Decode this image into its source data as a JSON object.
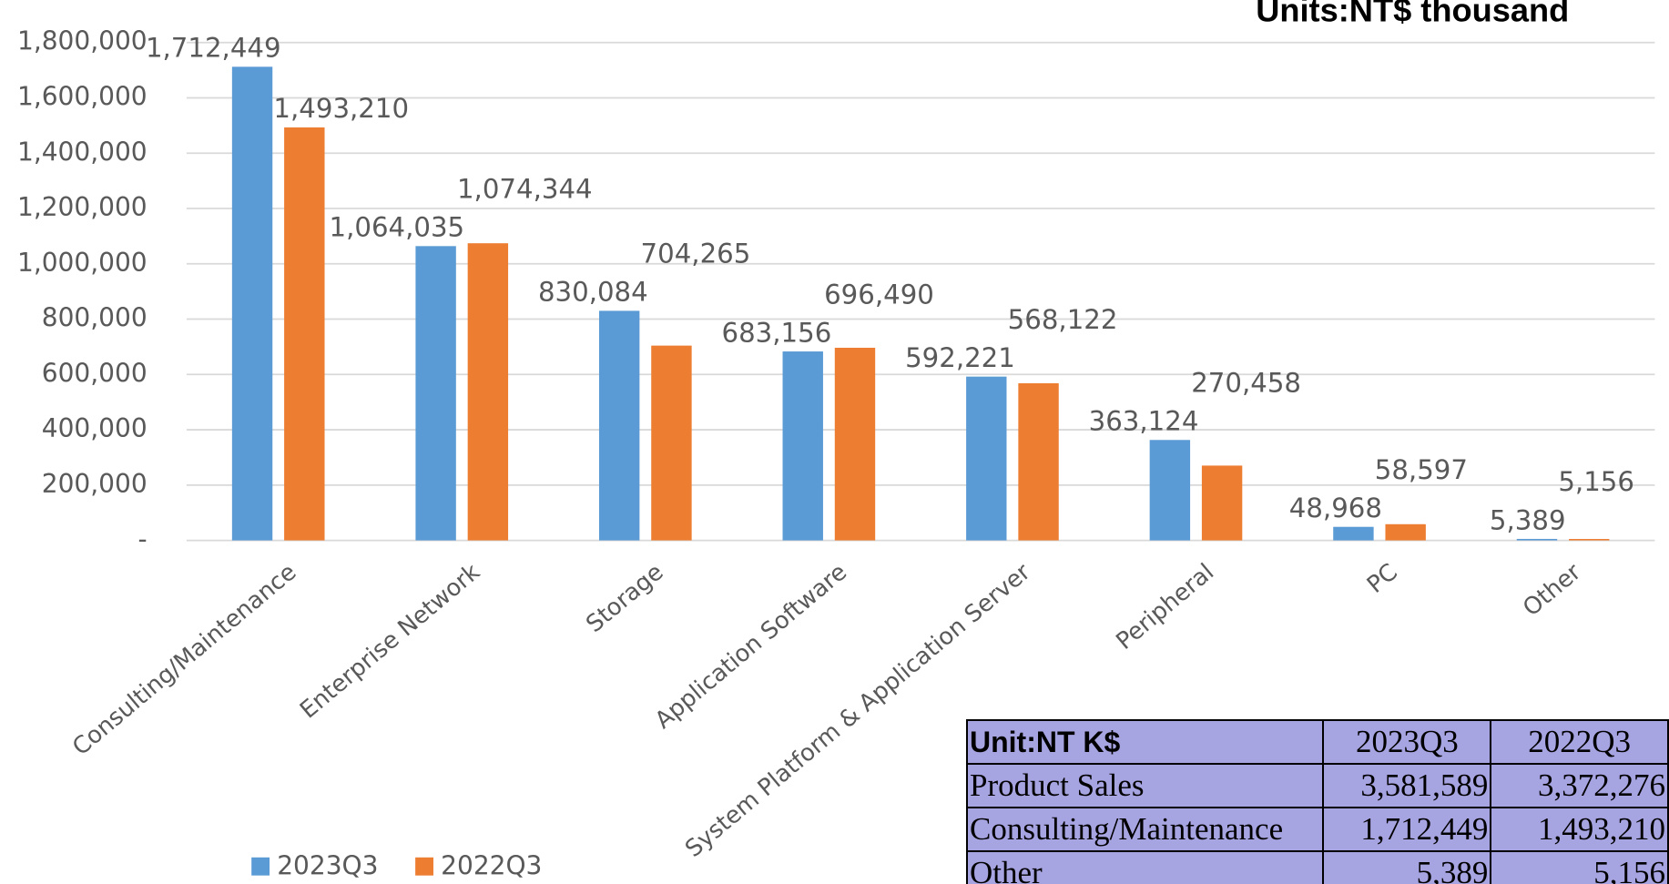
{
  "chart_data": {
    "type": "bar",
    "title": "Units:NT$ thousand",
    "categories": [
      "Consulting/Maintenance",
      "Enterprise Network",
      "Storage",
      "Application Software",
      "System Platform & Application Server",
      "Peripheral",
      "PC",
      "Other"
    ],
    "series": [
      {
        "name": "2023Q3",
        "color": "#5b9bd5",
        "values": [
          1712449,
          1064035,
          830084,
          683156,
          592221,
          363124,
          48968,
          5389
        ],
        "value_labels": [
          "1,712,449",
          "1,064,035",
          "830,084",
          "683,156",
          "592,221",
          "363,124",
          "48,968",
          "5,389"
        ]
      },
      {
        "name": "2022Q3",
        "color": "#ed7d31",
        "values": [
          1493210,
          1074344,
          704265,
          696490,
          568122,
          270458,
          58597,
          5156
        ],
        "value_labels": [
          "1,493,210",
          "1,074,344",
          "704,265",
          "696,490",
          "568,122",
          "270,458",
          "58,597",
          "5,156"
        ]
      }
    ],
    "ylim": [
      0,
      1800000
    ],
    "yticks": [
      {
        "value": 0,
        "label": "-"
      },
      {
        "value": 200000,
        "label": "200,000"
      },
      {
        "value": 400000,
        "label": "400,000"
      },
      {
        "value": 600000,
        "label": "600,000"
      },
      {
        "value": 800000,
        "label": "800,000"
      },
      {
        "value": 1000000,
        "label": "1,000,000"
      },
      {
        "value": 1200000,
        "label": "1,200,000"
      },
      {
        "value": 1400000,
        "label": "1,400,000"
      },
      {
        "value": 1600000,
        "label": "1,600,000"
      },
      {
        "value": 1800000,
        "label": "1,800,000"
      }
    ],
    "grid": true,
    "legend": "bottom-left"
  },
  "table": {
    "header": [
      "Unit:NT K$",
      "2023Q3",
      "2022Q3"
    ],
    "rows": [
      [
        "Product Sales",
        "3,581,589",
        "3,372,276"
      ],
      [
        "Consulting/Maintenance",
        "1,712,449",
        "1,493,210"
      ],
      [
        "Other",
        "5,389",
        "5,156"
      ]
    ]
  }
}
